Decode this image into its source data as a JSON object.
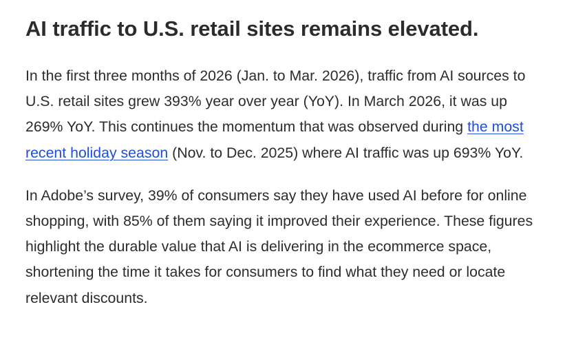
{
  "article": {
    "heading": "AI traffic to U.S. retail sites remains elevated.",
    "paragraph1": {
      "before_link": "In the first three months of 2026 (Jan. to Mar. 2026), traffic from AI sources to U.S. retail sites grew 393% year over year (YoY). In March 2026, it was up 269% YoY. This continues the momentum that was observed during ",
      "link_text": "the most recent holiday season",
      "after_link": " (Nov. to Dec. 2025) where AI traffic was up 693% YoY."
    },
    "paragraph2": "In Adobe’s survey, 39% of consumers say they have used AI before for online shopping, with 85% of them saying it improved their experience. These figures highlight the durable value that AI is delivering in the ecommerce space, shortening the time it takes for consumers to find what they need or locate relevant discounts.",
    "colors": {
      "text": "#2c2c2c",
      "link": "#1f4fd8",
      "background": "#ffffff"
    }
  }
}
